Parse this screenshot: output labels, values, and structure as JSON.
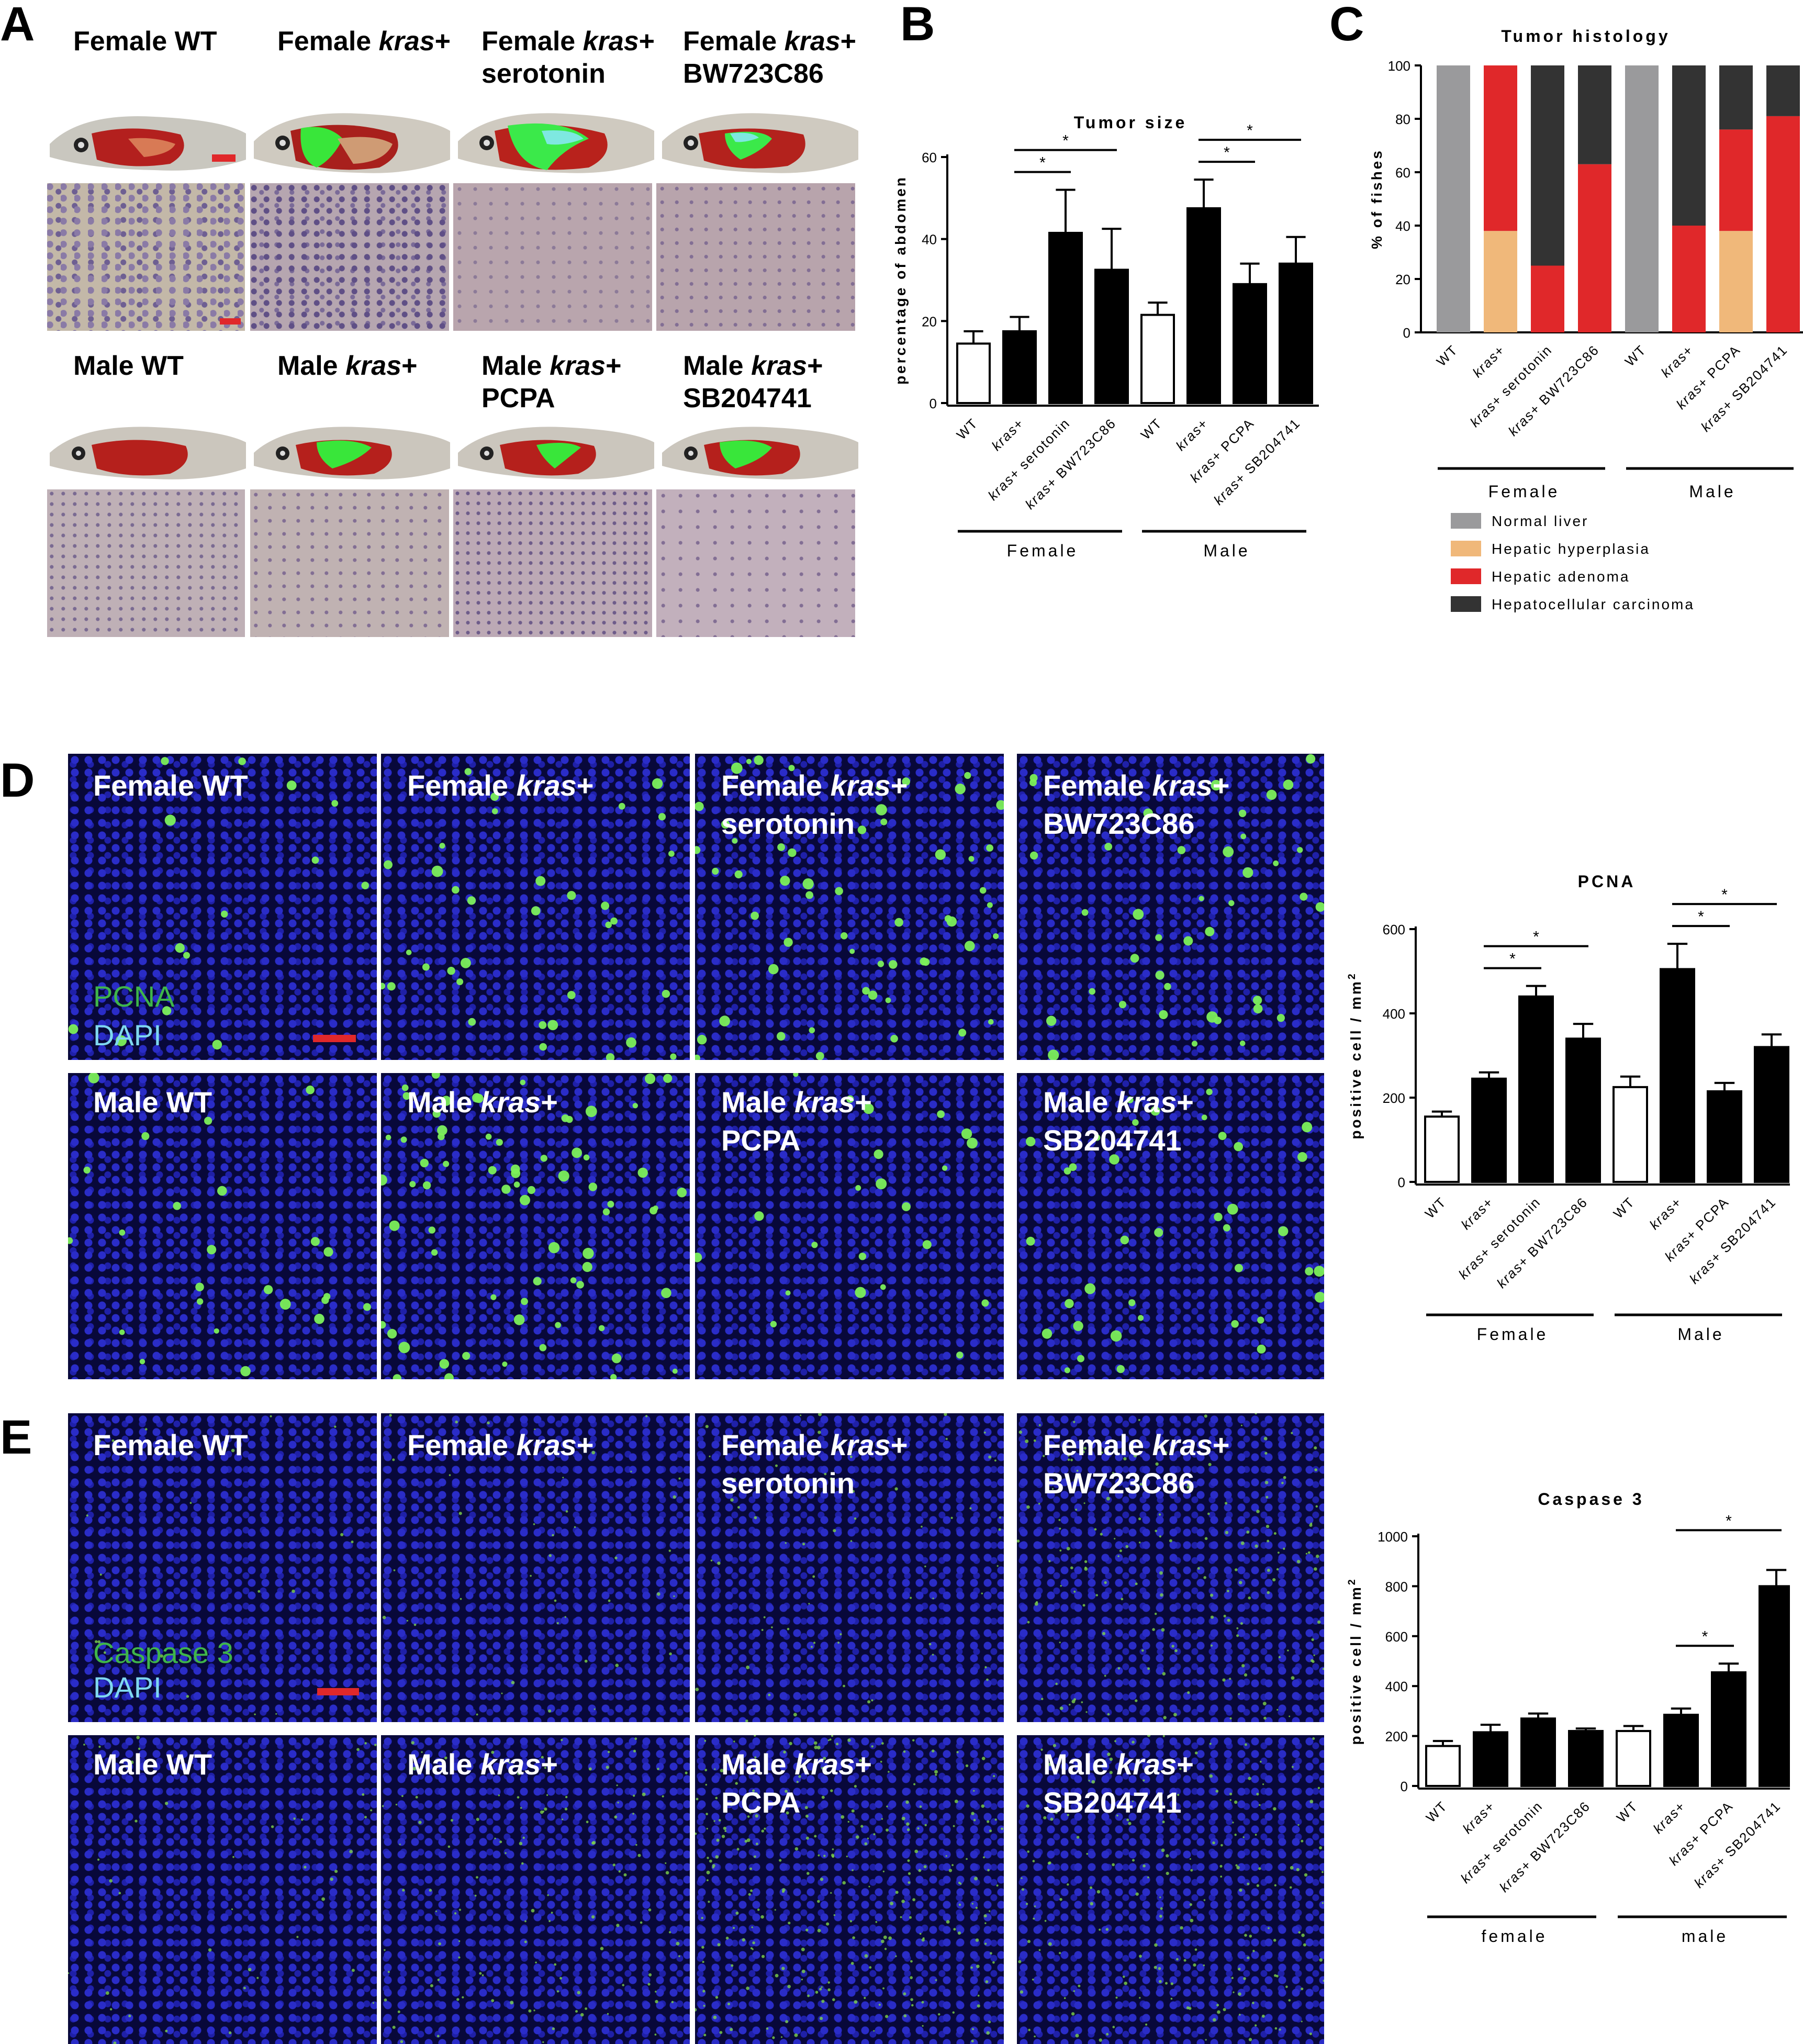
{
  "panels": {
    "A": {
      "letter": "A",
      "female": [
        {
          "line1": "Female WT",
          "prefix": "",
          "italic": "",
          "suffix": ""
        },
        {
          "line1": "",
          "prefix": "Female ",
          "italic": "kras",
          "suffix": "+"
        },
        {
          "line1": "",
          "prefix": "Female ",
          "italic": "kras",
          "suffix": "+",
          "line2": "serotonin"
        },
        {
          "line1": "",
          "prefix": "Female ",
          "italic": "kras",
          "suffix": "+",
          "line2": "BW723C86"
        }
      ],
      "male": [
        {
          "line1": "Male WT",
          "prefix": "",
          "italic": "",
          "suffix": ""
        },
        {
          "line1": "",
          "prefix": "Male ",
          "italic": "kras",
          "suffix": "+"
        },
        {
          "line1": "",
          "prefix": "Male ",
          "italic": "kras",
          "suffix": "+",
          "line2": "PCPA"
        },
        {
          "line1": "",
          "prefix": "Male ",
          "italic": "kras",
          "suffix": "+",
          "line2": "SB204741"
        }
      ]
    },
    "B": {
      "letter": "B"
    },
    "C": {
      "letter": "C"
    },
    "D": {
      "letter": "D",
      "stain1": "PCNA",
      "stain2": "DAPI",
      "female": [
        {
          "line1": "Female WT",
          "prefix": "",
          "italic": "",
          "suffix": ""
        },
        {
          "line1": "",
          "prefix": "Female ",
          "italic": "kras",
          "suffix": "+"
        },
        {
          "line1": "",
          "prefix": "Female ",
          "italic": "kras",
          "suffix": "+",
          "line2": "serotonin"
        },
        {
          "line1": "",
          "prefix": "Female ",
          "italic": "kras",
          "suffix": "+",
          "line2": "BW723C86"
        }
      ],
      "male": [
        {
          "line1": "Male WT",
          "prefix": "",
          "italic": "",
          "suffix": ""
        },
        {
          "line1": "",
          "prefix": "Male ",
          "italic": "kras",
          "suffix": "+"
        },
        {
          "line1": "",
          "prefix": "Male ",
          "italic": "kras",
          "suffix": "+",
          "line2": "PCPA"
        },
        {
          "line1": "",
          "prefix": "Male ",
          "italic": "kras",
          "suffix": "+",
          "line2": "SB204741"
        }
      ]
    },
    "E": {
      "letter": "E",
      "stain1": "Caspase 3",
      "stain2": "DAPI",
      "female": [
        {
          "line1": "Female WT",
          "prefix": "",
          "italic": "",
          "suffix": ""
        },
        {
          "line1": "",
          "prefix": "Female ",
          "italic": "kras",
          "suffix": "+"
        },
        {
          "line1": "",
          "prefix": "Female ",
          "italic": "kras",
          "suffix": "+",
          "line2": "serotonin"
        },
        {
          "line1": "",
          "prefix": "Female ",
          "italic": "kras",
          "suffix": "+",
          "line2": "BW723C86"
        }
      ],
      "male": [
        {
          "line1": "Male WT",
          "prefix": "",
          "italic": "",
          "suffix": ""
        },
        {
          "line1": "",
          "prefix": "Male ",
          "italic": "kras",
          "suffix": "+"
        },
        {
          "line1": "",
          "prefix": "Male ",
          "italic": "kras",
          "suffix": "+",
          "line2": "PCPA"
        },
        {
          "line1": "",
          "prefix": "Male ",
          "italic": "kras",
          "suffix": "+",
          "line2": "SB204741"
        }
      ]
    }
  },
  "colors": {
    "scalebar": "#e0282a",
    "stain_green": "#3fb54a",
    "dapi_cyan": "#7fd8f0",
    "normal_liver": "#9a9a9c",
    "hyperplasia": "#f0b87a",
    "adenoma": "#e0282a",
    "carcinoma": "#333333",
    "bar_filled": "#000000",
    "bar_open": "#ffffff"
  },
  "chart_data": [
    {
      "id": "B",
      "type": "bar",
      "title": "Tumor size",
      "ylabel": "percentage of abdomen",
      "ylim": [
        0,
        60
      ],
      "yticks": [
        0,
        20,
        40,
        60
      ],
      "categories": [
        "WT",
        "kras+",
        "kras+ serotonin",
        "kras+ BW723C86",
        "WT",
        "kras+",
        "kras+ PCPA",
        "kras+ SB204741"
      ],
      "values": [
        14.5,
        17.5,
        41.5,
        32.5,
        21.5,
        47.5,
        29,
        34
      ],
      "errors": [
        3,
        3.5,
        10.5,
        10,
        3,
        7,
        5,
        6.5
      ],
      "open_bars": [
        0,
        4
      ],
      "groups": [
        {
          "label": "Female",
          "from": 0,
          "to": 3
        },
        {
          "label": "Male",
          "from": 4,
          "to": 7
        }
      ],
      "significance": [
        {
          "from": 1,
          "to": 2,
          "mark": "*"
        },
        {
          "from": 1,
          "to": 3,
          "mark": "*"
        },
        {
          "from": 5,
          "to": 6,
          "mark": "*"
        },
        {
          "from": 5,
          "to": 7,
          "mark": "*"
        }
      ]
    },
    {
      "id": "C",
      "type": "bar",
      "stacked": true,
      "title": "Tumor histology",
      "ylabel": "% of fishes",
      "ylim": [
        0,
        100
      ],
      "yticks": [
        0,
        20,
        40,
        60,
        80,
        100
      ],
      "categories": [
        "WT",
        "kras+",
        "kras+ serotonin",
        "kras+ BW723C86",
        "WT",
        "kras+",
        "kras+ PCPA",
        "kras+ SB204741"
      ],
      "groups": [
        {
          "label": "Female",
          "from": 0,
          "to": 3
        },
        {
          "label": "Male",
          "from": 4,
          "to": 7
        }
      ],
      "legend_position": "bottom",
      "series": [
        {
          "name": "Normal liver",
          "color": "#9a9a9c",
          "values": [
            100,
            0,
            0,
            0,
            100,
            0,
            0,
            0
          ]
        },
        {
          "name": "Hepatic hyperplasia",
          "color": "#f0b87a",
          "values": [
            0,
            38,
            0,
            0,
            0,
            0,
            38,
            0
          ]
        },
        {
          "name": "Hepatic adenoma",
          "color": "#e0282a",
          "values": [
            0,
            62,
            25,
            63,
            0,
            40,
            38,
            81
          ]
        },
        {
          "name": "Hepatocellular carcinoma",
          "color": "#333333",
          "values": [
            0,
            0,
            75,
            37,
            0,
            60,
            24,
            19
          ]
        }
      ]
    },
    {
      "id": "D",
      "type": "bar",
      "title": "PCNA",
      "ylabel": "positive cell / mm",
      "ylabel_sup": "2",
      "ylim": [
        0,
        600
      ],
      "yticks": [
        0,
        200,
        400,
        600
      ],
      "categories": [
        "WT",
        "kras+",
        "kras+ serotonin",
        "kras+ BW723C86",
        "WT",
        "kras+",
        "kras+ PCPA",
        "kras+ SB204741"
      ],
      "values": [
        155,
        245,
        440,
        340,
        225,
        505,
        215,
        320
      ],
      "errors": [
        12,
        15,
        25,
        35,
        25,
        60,
        20,
        30
      ],
      "open_bars": [
        0,
        4
      ],
      "groups": [
        {
          "label": "Female",
          "from": 0,
          "to": 3
        },
        {
          "label": "Male",
          "from": 4,
          "to": 7
        }
      ],
      "significance": [
        {
          "from": 1,
          "to": 2,
          "mark": "*"
        },
        {
          "from": 1,
          "to": 3,
          "mark": "*"
        },
        {
          "from": 5,
          "to": 6,
          "mark": "*"
        },
        {
          "from": 5,
          "to": 7,
          "mark": "*"
        }
      ]
    },
    {
      "id": "E",
      "type": "bar",
      "title": "Caspase 3",
      "ylabel": "positive cell / mm",
      "ylabel_sup": "2",
      "ylim": [
        0,
        1000
      ],
      "yticks": [
        0,
        200,
        400,
        600,
        800,
        1000
      ],
      "categories": [
        "WT",
        "kras+",
        "kras+ serotonin",
        "kras+ BW723C86",
        "WT",
        "kras+",
        "kras+ PCPA",
        "kras+ SB204741"
      ],
      "values": [
        160,
        215,
        270,
        220,
        220,
        285,
        455,
        800
      ],
      "errors": [
        20,
        30,
        20,
        10,
        20,
        25,
        35,
        65
      ],
      "open_bars": [
        0,
        4
      ],
      "groups": [
        {
          "label": "female",
          "from": 0,
          "to": 3
        },
        {
          "label": "male",
          "from": 4,
          "to": 7
        }
      ],
      "significance": [
        {
          "from": 5,
          "to": 6,
          "mark": "*"
        },
        {
          "from": 5,
          "to": 7,
          "mark": "*"
        }
      ]
    }
  ]
}
